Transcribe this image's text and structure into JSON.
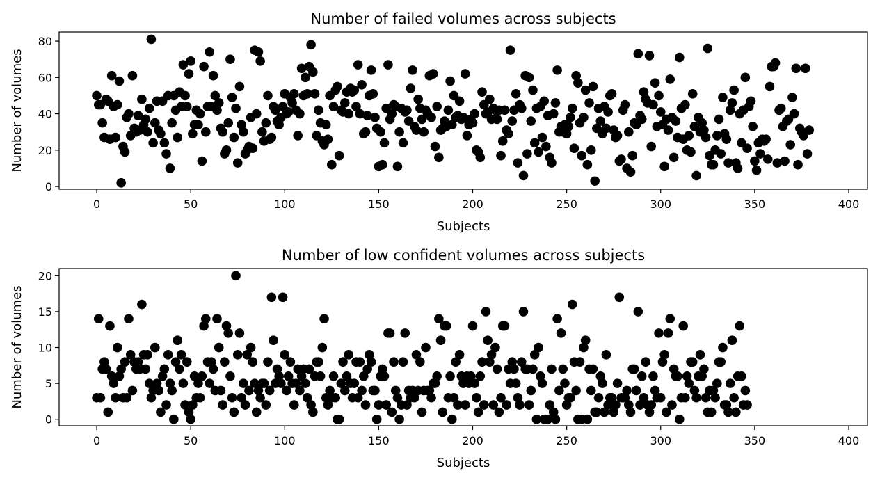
{
  "chart_data": [
    {
      "type": "scatter",
      "title": "Number of failed volumes across subjects",
      "xlabel": "Subjects",
      "ylabel": "Number of volumes",
      "xlim": [
        -20,
        410
      ],
      "ylim": [
        -1.5,
        85
      ],
      "xticks": [
        0,
        50,
        100,
        150,
        200,
        250,
        300,
        350,
        400
      ],
      "yticks": [
        0,
        20,
        40,
        60,
        80
      ],
      "grid": false,
      "marker_color": "#000000",
      "y": [
        50,
        45,
        45,
        35,
        27,
        48,
        47,
        26,
        61,
        44,
        27,
        45,
        58,
        2,
        22,
        19,
        38,
        40,
        28,
        61,
        32,
        30,
        39,
        31,
        48,
        34,
        37,
        30,
        43,
        81,
        24,
        35,
        47,
        31,
        29,
        47,
        24,
        18,
        50,
        10,
        35,
        50,
        42,
        27,
        52,
        44,
        67,
        50,
        44,
        62,
        69,
        29,
        34,
        42,
        34,
        40,
        14,
        66,
        30,
        44,
        74,
        44,
        61,
        50,
        42,
        46,
        32,
        30,
        18,
        20,
        35,
        70,
        49,
        27,
        43,
        13,
        55,
        34,
        30,
        18,
        20,
        22,
        38,
        21,
        75,
        40,
        74,
        69,
        30,
        25,
        35,
        50,
        26,
        27,
        44,
        42,
        36,
        34,
        38,
        44,
        51,
        40,
        41,
        49,
        46,
        51,
        42,
        28,
        40,
        65,
        50,
        60,
        51,
        66,
        78,
        63,
        51,
        28,
        42,
        35,
        25,
        23,
        34,
        26,
        50,
        12,
        44,
        53,
        55,
        17,
        42,
        41,
        46,
        52,
        40,
        54,
        52,
        53,
        44,
        67,
        40,
        56,
        29,
        30,
        39,
        50,
        64,
        51,
        38,
        32,
        11,
        30,
        12,
        24,
        43,
        67,
        37,
        40,
        45,
        44,
        11,
        30,
        43,
        24,
        41,
        42,
        36,
        54,
        64,
        33,
        31,
        48,
        43,
        37,
        30,
        42,
        40,
        61,
        38,
        62,
        22,
        44,
        16,
        31,
        32,
        36,
        33,
        42,
        58,
        34,
        50,
        38,
        39,
        47,
        37,
        38,
        62,
        28,
        34,
        37,
        35,
        40,
        20,
        19,
        16,
        52,
        45,
        40,
        41,
        48,
        37,
        43,
        42,
        37,
        42,
        17,
        25,
        42,
        31,
        29,
        75,
        36,
        42,
        51,
        13,
        45,
        43,
        6,
        61,
        18,
        60,
        36,
        53,
        24,
        43,
        19,
        44,
        27,
        47,
        22,
        39,
        16,
        13,
        40,
        46,
        64,
        30,
        33,
        30,
        34,
        29,
        33,
        38,
        43,
        21,
        61,
        57,
        35,
        17,
        38,
        53,
        12,
        46,
        20,
        55,
        3,
        32,
        43,
        36,
        29,
        44,
        32,
        41,
        50,
        51,
        31,
        27,
        28,
        14,
        15,
        42,
        45,
        10,
        30,
        8,
        17,
        35,
        34,
        73,
        39,
        37,
        52,
        48,
        46,
        72,
        22,
        45,
        57,
        33,
        50,
        41,
        34,
        11,
        37,
        31,
        59,
        38,
        16,
        36,
        27,
        71,
        43,
        26,
        45,
        20,
        28,
        19,
        51,
        33,
        6,
        38,
        30,
        35,
        31,
        27,
        76,
        17,
        12,
        12,
        20,
        28,
        37,
        18,
        49,
        29,
        26,
        13,
        42,
        46,
        53,
        13,
        10,
        40,
        24,
        42,
        60,
        21,
        44,
        47,
        33,
        14,
        9,
        24,
        18,
        26,
        25,
        26,
        15,
        55,
        66,
        66,
        68,
        13,
        42,
        43,
        33,
        14,
        36,
        37,
        23,
        49,
        40,
        65,
        12,
        32,
        30,
        28,
        65,
        18,
        31
      ]
    },
    {
      "type": "scatter",
      "title": "Number of low confident volumes across subjects",
      "xlabel": "Subjects",
      "ylabel": "Number of volumes",
      "xlim": [
        -20,
        410
      ],
      "ylim": [
        -0.9,
        21
      ],
      "xticks": [
        0,
        50,
        100,
        150,
        200,
        250,
        300,
        350,
        400
      ],
      "yticks": [
        0,
        5,
        10,
        15,
        20
      ],
      "grid": false,
      "marker_color": "#000000",
      "y": [
        3,
        14,
        3,
        7,
        8,
        7,
        1,
        13,
        6,
        5,
        3,
        10,
        6,
        7,
        3,
        8,
        3,
        14,
        9,
        4,
        8,
        7,
        8,
        7,
        16,
        9,
        7,
        9,
        5,
        3,
        4,
        10,
        5,
        4,
        1,
        6,
        7,
        2,
        9,
        5,
        4,
        0,
        8,
        11,
        7,
        9,
        5,
        2,
        8,
        1,
        0,
        2,
        6,
        3,
        5,
        3,
        6,
        13,
        14,
        8,
        5,
        8,
        7,
        4,
        14,
        10,
        4,
        2,
        8,
        13,
        12,
        6,
        3,
        1,
        20,
        9,
        12,
        3,
        5,
        2,
        9,
        4,
        10,
        8,
        5,
        1,
        4,
        3,
        5,
        5,
        2,
        8,
        4,
        17,
        11,
        5,
        7,
        6,
        5,
        17,
        9,
        4,
        6,
        8,
        5,
        2,
        5,
        7,
        4,
        6,
        7,
        5,
        3,
        7,
        2,
        1,
        6,
        8,
        8,
        6,
        10,
        14,
        3,
        2,
        4,
        3,
        6,
        3,
        0,
        0,
        5,
        8,
        4,
        6,
        9,
        5,
        3,
        5,
        8,
        3,
        8,
        4,
        6,
        2,
        7,
        9,
        8,
        4,
        4,
        0,
        2,
        6,
        7,
        6,
        2,
        12,
        12,
        1,
        8,
        4,
        3,
        0,
        2,
        8,
        12,
        2,
        4,
        3,
        4,
        3,
        9,
        4,
        8,
        1,
        4,
        10,
        4,
        4,
        3,
        5,
        5,
        6,
        14,
        11,
        1,
        13,
        13,
        3,
        6,
        0,
        3,
        8,
        2,
        9,
        6,
        5,
        2,
        6,
        5,
        6,
        13,
        5,
        3,
        1,
        6,
        8,
        2,
        15,
        11,
        8,
        9,
        2,
        10,
        7,
        1,
        3,
        13,
        13,
        2,
        7,
        5,
        8,
        7,
        5,
        3,
        2,
        8,
        15,
        7,
        7,
        2,
        4,
        7,
        9,
        0,
        10,
        6,
        5,
        0,
        0,
        0,
        2,
        7,
        1,
        0,
        14,
        4,
        12,
        7,
        5,
        2,
        3,
        3,
        16,
        8,
        4,
        0,
        8,
        0,
        10,
        11,
        0,
        7,
        4,
        7,
        1,
        1,
        3,
        6,
        5,
        1,
        9,
        2,
        3,
        3,
        1,
        2,
        5,
        17,
        3,
        3,
        3,
        4,
        2,
        1,
        7,
        7,
        4,
        15,
        2,
        6,
        3,
        8,
        2,
        1,
        2,
        6,
        4,
        3,
        12,
        3,
        8,
        9,
        1,
        12,
        14,
        2,
        7,
        6,
        6,
        0,
        3,
        13,
        3,
        6,
        5,
        8,
        8,
        4,
        3,
        6,
        9,
        6,
        7,
        3,
        1,
        4,
        1,
        4,
        3,
        5,
        8,
        8,
        10,
        2,
        2,
        1,
        5,
        11,
        3,
        1,
        6,
        13,
        6,
        2,
        4,
        2
      ]
    }
  ]
}
